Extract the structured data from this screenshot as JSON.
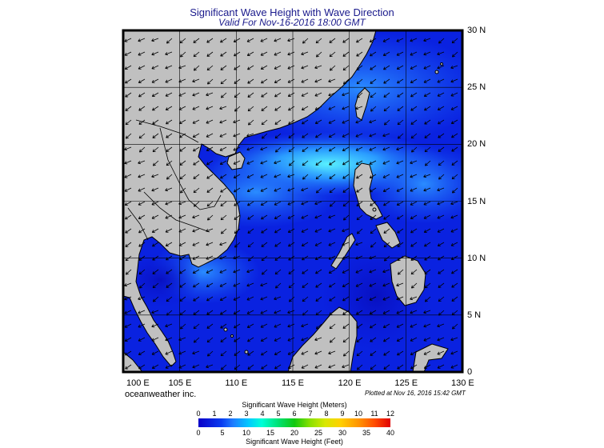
{
  "title": "Significant Wave Height with Wave Direction",
  "subtitle": "Valid For Nov-16-2016 18:00 GMT",
  "lat_labels": [
    "30 N",
    "25 N",
    "20 N",
    "15 N",
    "10 N",
    "5 N",
    "0"
  ],
  "lon_labels": [
    "100 E",
    "105 E",
    "110 E",
    "115 E",
    "120 E",
    "125 E",
    "130 E"
  ],
  "brand": "oceanweather inc.",
  "plotted": "Plotted at Nov 16, 2016 15:42 GMT",
  "scale": {
    "meters_title": "Significant Wave Height (Meters)",
    "feet_title": "Significant Wave Height (Feet)",
    "meters_ticks": [
      "0",
      "1",
      "2",
      "3",
      "4",
      "5",
      "6",
      "7",
      "8",
      "9",
      "10",
      "11",
      "12"
    ],
    "feet_ticks": [
      "0",
      "5",
      "10",
      "15",
      "20",
      "25",
      "30",
      "35",
      "40"
    ]
  },
  "colors": {
    "land": "#c0c0c0",
    "sea_deep": "#0a18d8",
    "sea_mid": "#1a5ef8",
    "sea_high": "#28d8ff"
  }
}
